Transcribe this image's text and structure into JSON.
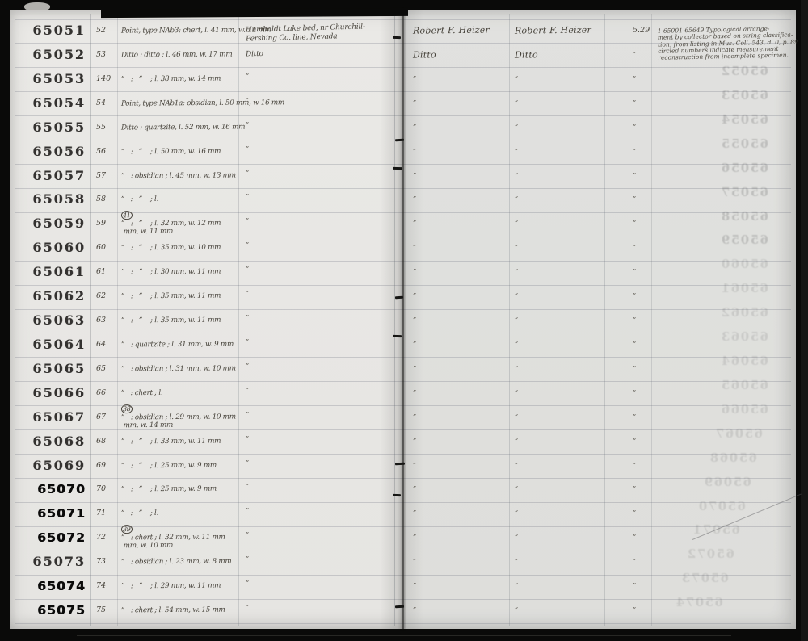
{
  "document_kind": "handwritten museum specimen ledger (scanned page spread)",
  "colors": {
    "paper": "#e8e7e4",
    "handwriting_ink": "#47433b",
    "stamp_ink_worn": "#343230",
    "stamp_ink_dark": "#0b0b0a",
    "rule_line": "#6a7078",
    "scan_frame": "#0a0a09"
  },
  "page": {
    "rows": [
      {
        "catalog": "65051",
        "no": "52",
        "desc_pre": "Point, type NAb3: chert, l. 41 mm, w. 11 mm",
        "circled": "",
        "desc_post": "",
        "loc": "Humboldt Lake bed, nr Churchill-\nPershing Co. line, Nevada",
        "collector": "Robert F. Heizer",
        "from": "Robert F. Heizer",
        "when": "5.29",
        "stamp": "worn"
      },
      {
        "catalog": "65052",
        "no": "53",
        "desc_pre": "Ditto : ditto ; l. 46 mm, w. 17 mm",
        "circled": "",
        "desc_post": "",
        "loc": "Ditto",
        "collector": "Ditto",
        "from": "Ditto",
        "when": "”",
        "stamp": "worn"
      },
      {
        "catalog": "65053",
        "no": "140",
        "desc_pre": "”   :   ”    ; l. 38 mm, w. 14 mm",
        "circled": "",
        "desc_post": "",
        "loc": "”",
        "collector": "”",
        "from": "”",
        "when": "”",
        "stamp": "worn"
      },
      {
        "catalog": "65054",
        "no": "54",
        "desc_pre": "Point, type NAb1a: obsidian, l. 50 mm, w 16 mm",
        "circled": "",
        "desc_post": "",
        "loc": "”",
        "collector": "”",
        "from": "”",
        "when": "”",
        "stamp": "worn"
      },
      {
        "catalog": "65055",
        "no": "55",
        "desc_pre": "Ditto : quartzite, l. 52 mm, w. 16 mm",
        "circled": "",
        "desc_post": "",
        "loc": "”",
        "collector": "”",
        "from": "”",
        "when": "”",
        "stamp": "worn"
      },
      {
        "catalog": "65056",
        "no": "56",
        "desc_pre": "”   :   ”    ; l. 50 mm, w. 16 mm",
        "circled": "",
        "desc_post": "",
        "loc": "”",
        "collector": "”",
        "from": "”",
        "when": "”",
        "stamp": "worn"
      },
      {
        "catalog": "65057",
        "no": "57",
        "desc_pre": "”   : obsidian ; l. 45 mm, w. 13 mm",
        "circled": "",
        "desc_post": "",
        "loc": "”",
        "collector": "”",
        "from": "”",
        "when": "”",
        "stamp": "worn"
      },
      {
        "catalog": "65058",
        "no": "58",
        "desc_pre": "”   :   ”    ; l. ",
        "circled": "41",
        "desc_post": " mm, w. 11 mm",
        "loc": "”",
        "collector": "”",
        "from": "”",
        "when": "”",
        "stamp": "worn"
      },
      {
        "catalog": "65059",
        "no": "59",
        "desc_pre": "”   :   ”    ; l. 32 mm, w. 12 mm",
        "circled": "",
        "desc_post": "",
        "loc": "”",
        "collector": "”",
        "from": "”",
        "when": "”",
        "stamp": "worn"
      },
      {
        "catalog": "65060",
        "no": "60",
        "desc_pre": "”   :   ”    ; l. 35 mm, w. 10 mm",
        "circled": "",
        "desc_post": "",
        "loc": "”",
        "collector": "”",
        "from": "”",
        "when": "”",
        "stamp": "worn"
      },
      {
        "catalog": "65061",
        "no": "61",
        "desc_pre": "”   :   ”    ; l. 30 mm, w. 11 mm",
        "circled": "",
        "desc_post": "",
        "loc": "”",
        "collector": "”",
        "from": "”",
        "when": "”",
        "stamp": "worn"
      },
      {
        "catalog": "65062",
        "no": "62",
        "desc_pre": "”   :   ”    ; l. 35 mm, w. 11 mm",
        "circled": "",
        "desc_post": "",
        "loc": "”",
        "collector": "”",
        "from": "”",
        "when": "”",
        "stamp": "worn"
      },
      {
        "catalog": "65063",
        "no": "63",
        "desc_pre": "”   :   ”    ; l. 35 mm, w. 11 mm",
        "circled": "",
        "desc_post": "",
        "loc": "”",
        "collector": "”",
        "from": "”",
        "when": "”",
        "stamp": "worn"
      },
      {
        "catalog": "65064",
        "no": "64",
        "desc_pre": "”   : quartzite ; l. 31 mm, w. 9 mm",
        "circled": "",
        "desc_post": "",
        "loc": "”",
        "collector": "”",
        "from": "”",
        "when": "”",
        "stamp": "worn"
      },
      {
        "catalog": "65065",
        "no": "65",
        "desc_pre": "”   : obsidian ; l. 31 mm, w. 10 mm",
        "circled": "",
        "desc_post": "",
        "loc": "”",
        "collector": "”",
        "from": "”",
        "when": "”",
        "stamp": "worn"
      },
      {
        "catalog": "65066",
        "no": "66",
        "desc_pre": "”   : chert ; l. ",
        "circled": "38",
        "desc_post": " mm, w. 14 mm",
        "loc": "”",
        "collector": "”",
        "from": "”",
        "when": "”",
        "stamp": "worn"
      },
      {
        "catalog": "65067",
        "no": "67",
        "desc_pre": "”   : obsidian ; l. 29 mm, w. 10 mm",
        "circled": "",
        "desc_post": "",
        "loc": "”",
        "collector": "”",
        "from": "”",
        "when": "”",
        "stamp": "worn"
      },
      {
        "catalog": "65068",
        "no": "68",
        "desc_pre": "”   :   ”    ; l. 33 mm, w. 11 mm",
        "circled": "",
        "desc_post": "",
        "loc": "”",
        "collector": "”",
        "from": "”",
        "when": "”",
        "stamp": "worn"
      },
      {
        "catalog": "65069",
        "no": "69",
        "desc_pre": "”   :   ”    ; l. 25 mm, w. 9 mm",
        "circled": "",
        "desc_post": "",
        "loc": "”",
        "collector": "”",
        "from": "”",
        "when": "”",
        "stamp": "worn"
      },
      {
        "catalog": "65070",
        "no": "70",
        "desc_pre": "”   :   ”    ; l. 25 mm, w. 9 mm",
        "circled": "",
        "desc_post": "",
        "loc": "”",
        "collector": "”",
        "from": "”",
        "when": "”",
        "stamp": "dark"
      },
      {
        "catalog": "65071",
        "no": "71",
        "desc_pre": "”   :   ”    ; l. ",
        "circled": "39",
        "desc_post": " mm, w. 10 mm",
        "loc": "”",
        "collector": "”",
        "from": "”",
        "when": "”",
        "stamp": "dark"
      },
      {
        "catalog": "65072",
        "no": "72",
        "desc_pre": "”   : chert ; l. 32 mm, w. 11 mm",
        "circled": "",
        "desc_post": "",
        "loc": "”",
        "collector": "”",
        "from": "”",
        "when": "”",
        "stamp": "dark"
      },
      {
        "catalog": "65073",
        "no": "73",
        "desc_pre": "”   : obsidian ; l. 23 mm, w. 8 mm",
        "circled": "",
        "desc_post": "",
        "loc": "”",
        "collector": "”",
        "from": "”",
        "when": "”",
        "stamp": "worn"
      },
      {
        "catalog": "65074",
        "no": "74",
        "desc_pre": "”   :   ”    ; l. 29 mm, w. 11 mm",
        "circled": "",
        "desc_post": "",
        "loc": "”",
        "collector": "”",
        "from": "”",
        "when": "”",
        "stamp": "dark"
      },
      {
        "catalog": "65075",
        "no": "75",
        "desc_pre": "”   : chert ; l. 54 mm, w. 15 mm",
        "circled": "",
        "desc_post": "",
        "loc": "”",
        "collector": "”",
        "from": "”",
        "when": "”",
        "stamp": "dark"
      }
    ],
    "note_lines": [
      "1-65001-65649 Typological arrange-",
      "ment by collector based on string classifica-",
      "tion, from listing in Mus. Coll. 543, d. 0, p. 89",
      "circled numbers indicate measurement",
      "reconstruction from incomplete specimen."
    ],
    "ghost_numbers": [
      "65052",
      "65053",
      "65054",
      "65055",
      "65056",
      "65057",
      "65058",
      "65059",
      "65060",
      "65061",
      "65062",
      "65063",
      "65064",
      "65065",
      "65066",
      "65067",
      "65068",
      "65069",
      "65070",
      "65071",
      "65072",
      "65073",
      "65074"
    ]
  }
}
